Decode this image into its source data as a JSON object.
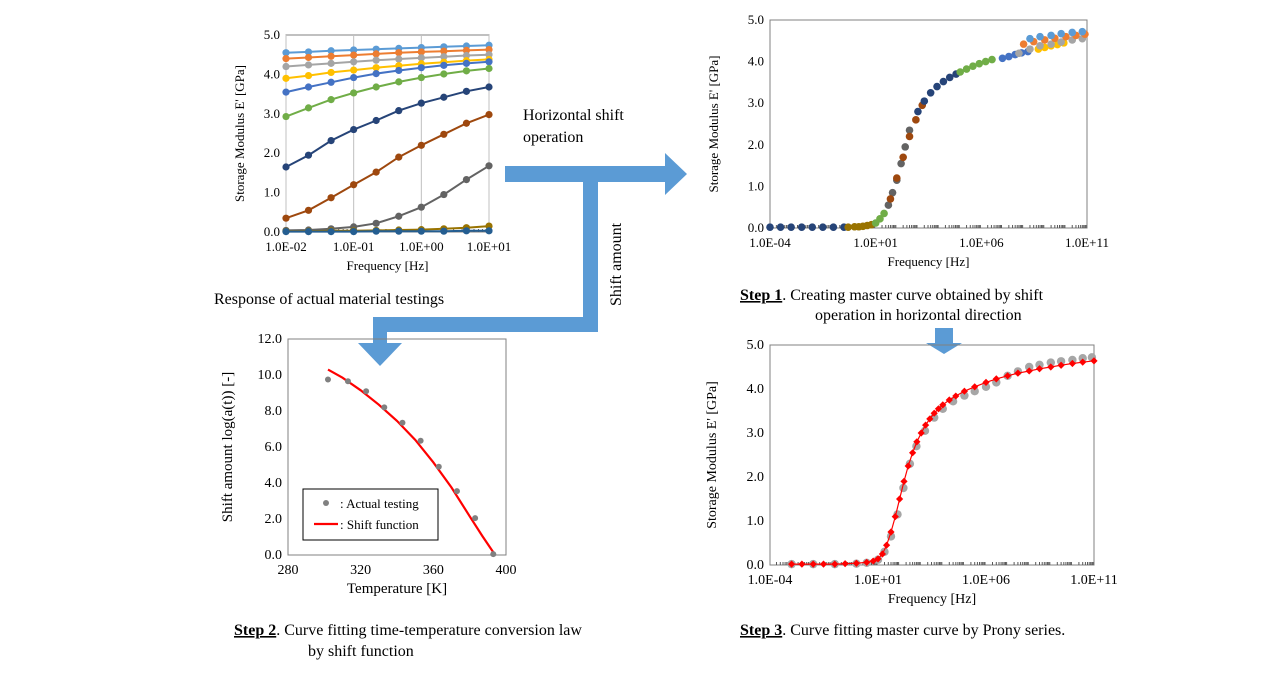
{
  "arrows": {
    "horizontal_shift_label": [
      "Horizontal shift",
      "operation"
    ],
    "shift_amount_label": "Shift amount"
  },
  "captions": {
    "response_label": "Response of actual material testings",
    "step1_prefix": "Step 1",
    "step1_line1": ". Creating master curve obtained by shift",
    "step1_line2": "operation in horizontal direction",
    "step2_prefix": "Step 2",
    "step2_line1": ". Curve  fitting time-temperature conversion law",
    "step2_line2": "by shift function",
    "step3_prefix": "Step 3",
    "step3_line1": ". Curve fitting master curve by Prony series."
  },
  "colors": {
    "arrow": "#5b9bd5",
    "fit_red": "#ff0000",
    "grey": "#a6a6a6",
    "point_grey": "#808080"
  },
  "chart_data": [
    {
      "id": "response",
      "type": "line",
      "xlabel": "Frequency [Hz]",
      "ylabel": "Storage Modulus E' [GPa]",
      "x_scale": "log",
      "xlim": [
        0.01,
        10
      ],
      "ylim": [
        0,
        5
      ],
      "xticks": [
        "1.0E-02",
        "1.0E-01",
        "1.0E+00",
        "1.0E+01"
      ],
      "yticks": [
        "0.0",
        "1.0",
        "2.0",
        "3.0",
        "4.0",
        "5.0"
      ],
      "grid": "vertical",
      "x": [
        0.01,
        0.0215,
        0.0464,
        0.1,
        0.215,
        0.464,
        1,
        2.15,
        4.64,
        10
      ],
      "series": [
        {
          "color": "#5b9bd5",
          "values": [
            4.55,
            4.57,
            4.6,
            4.62,
            4.64,
            4.66,
            4.68,
            4.7,
            4.72,
            4.74
          ]
        },
        {
          "color": "#ed7d31",
          "values": [
            4.4,
            4.43,
            4.46,
            4.49,
            4.52,
            4.55,
            4.57,
            4.59,
            4.61,
            4.63
          ]
        },
        {
          "color": "#a5a5a5",
          "values": [
            4.2,
            4.24,
            4.28,
            4.32,
            4.36,
            4.39,
            4.42,
            4.45,
            4.48,
            4.5
          ]
        },
        {
          "color": "#ffc000",
          "values": [
            3.9,
            3.97,
            4.05,
            4.11,
            4.17,
            4.22,
            4.27,
            4.31,
            4.35,
            4.38
          ]
        },
        {
          "color": "#4472c4",
          "values": [
            3.55,
            3.68,
            3.8,
            3.92,
            4.02,
            4.1,
            4.17,
            4.23,
            4.28,
            4.32
          ]
        },
        {
          "color": "#70ad47",
          "values": [
            2.93,
            3.15,
            3.36,
            3.53,
            3.68,
            3.81,
            3.92,
            4.01,
            4.09,
            4.15
          ]
        },
        {
          "color": "#264478",
          "values": [
            1.65,
            1.95,
            2.32,
            2.6,
            2.83,
            3.08,
            3.27,
            3.42,
            3.57,
            3.68
          ]
        },
        {
          "color": "#9e480e",
          "values": [
            0.35,
            0.55,
            0.87,
            1.2,
            1.52,
            1.9,
            2.2,
            2.48,
            2.76,
            2.98
          ]
        },
        {
          "color": "#636363",
          "values": [
            0.04,
            0.05,
            0.08,
            0.13,
            0.22,
            0.4,
            0.63,
            0.95,
            1.33,
            1.68
          ]
        },
        {
          "color": "#997300",
          "values": [
            0.02,
            0.02,
            0.03,
            0.03,
            0.04,
            0.05,
            0.06,
            0.08,
            0.11,
            0.15
          ]
        },
        {
          "color": "#255e91",
          "values": [
            0.01,
            0.01,
            0.01,
            0.01,
            0.02,
            0.02,
            0.02,
            0.02,
            0.03,
            0.03
          ]
        }
      ]
    },
    {
      "id": "master",
      "type": "scatter",
      "xlabel": "Frequency [Hz]",
      "ylabel": "Storage Modulus E' [GPa]",
      "x_scale": "log",
      "xlim": [
        0.0001,
        100000000000.0
      ],
      "ylim": [
        0,
        5
      ],
      "xticks": [
        "1.0E-04",
        "1.0E+01",
        "1.0E+06",
        "1.0E+11"
      ],
      "yticks": [
        "0.0",
        "1.0",
        "2.0",
        "3.0",
        "4.0",
        "5.0"
      ],
      "grid": "off",
      "groups": [
        {
          "color": "#264478",
          "x": [
            0.0001,
            0.000316,
            0.001,
            0.00316,
            0.01,
            0.0316,
            0.1,
            0.316
          ],
          "y": [
            0.02,
            0.02,
            0.02,
            0.02,
            0.02,
            0.02,
            0.02,
            0.02
          ]
        },
        {
          "color": "#997300",
          "x": [
            0.5,
            1.0,
            1.6,
            2.5,
            4,
            6.3
          ],
          "y": [
            0.02,
            0.03,
            0.03,
            0.04,
            0.06,
            0.08
          ]
        },
        {
          "color": "#70ad47",
          "x": [
            10,
            16,
            25
          ],
          "y": [
            0.12,
            0.22,
            0.35
          ]
        },
        {
          "color": "#636363",
          "x": [
            40,
            63,
            100,
            160,
            250,
            400
          ],
          "y": [
            0.55,
            0.85,
            1.15,
            1.55,
            1.95,
            2.35
          ]
        },
        {
          "color": "#9e480e",
          "x": [
            50,
            100,
            200,
            400,
            800,
            1600
          ],
          "y": [
            0.7,
            1.2,
            1.7,
            2.2,
            2.6,
            2.95
          ]
        },
        {
          "color": "#264478",
          "x": [
            1000,
            2000,
            4000,
            8000,
            16000,
            32000,
            64000
          ],
          "y": [
            2.8,
            3.05,
            3.25,
            3.4,
            3.52,
            3.62,
            3.7
          ]
        },
        {
          "color": "#70ad47",
          "x": [
            100000,
            200000,
            400000,
            800000,
            1600000,
            3200000
          ],
          "y": [
            3.75,
            3.82,
            3.89,
            3.95,
            4.0,
            4.05
          ]
        },
        {
          "color": "#4472c4",
          "x": [
            10000000,
            20000000,
            40000000,
            80000000,
            160000000
          ],
          "y": [
            4.08,
            4.12,
            4.17,
            4.21,
            4.24
          ]
        },
        {
          "color": "#ffc000",
          "x": [
            500000000,
            1000000000,
            2000000000,
            4000000000,
            8000000000
          ],
          "y": [
            4.3,
            4.34,
            4.38,
            4.41,
            4.45
          ]
        },
        {
          "color": "#a5a5a5",
          "x": [
            60000000,
            200000000,
            600000000,
            2000000000,
            6000000000,
            20000000000,
            60000000000
          ],
          "y": [
            4.2,
            4.3,
            4.38,
            4.42,
            4.47,
            4.52,
            4.55
          ]
        },
        {
          "color": "#ed7d31",
          "x": [
            100000000,
            300000000,
            1000000000,
            3000000000,
            10000000000,
            30000000000,
            80000000000
          ],
          "y": [
            4.42,
            4.48,
            4.52,
            4.56,
            4.6,
            4.63,
            4.66
          ]
        },
        {
          "color": "#5b9bd5",
          "x": [
            200000000,
            600000000,
            2000000000,
            6000000000,
            20000000000,
            60000000000
          ],
          "y": [
            4.55,
            4.6,
            4.63,
            4.67,
            4.7,
            4.72
          ]
        }
      ]
    },
    {
      "id": "shift",
      "type": "scatter",
      "xlabel": "Temperature [K]",
      "ylabel": "Shift amount log(a(t)) [-]",
      "xlim": [
        280,
        400
      ],
      "ylim": [
        0,
        12
      ],
      "xticks": [
        "280",
        "320",
        "360",
        "400"
      ],
      "yticks": [
        "0.0",
        "2.0",
        "4.0",
        "6.0",
        "8.0",
        "10.0",
        "12.0"
      ],
      "grid": "off",
      "points": {
        "name": ": Actual testing",
        "x": [
          302,
          313,
          323,
          333,
          343,
          353,
          363,
          373,
          383,
          393
        ],
        "y": [
          9.75,
          9.65,
          9.1,
          8.2,
          7.35,
          6.35,
          4.9,
          3.55,
          2.05,
          0.05
        ]
      },
      "fit": {
        "name": ": Shift function",
        "x": [
          302,
          310,
          320,
          330,
          340,
          350,
          360,
          370,
          380,
          387,
          393
        ],
        "y": [
          10.3,
          9.85,
          9.15,
          8.35,
          7.45,
          6.4,
          5.15,
          3.75,
          2.15,
          1.05,
          0.15
        ]
      },
      "legend": "bottom-left"
    },
    {
      "id": "prony",
      "type": "scatter",
      "xlabel": "Frequency [Hz]",
      "ylabel": "Storage Modulus E' [GPa]",
      "x_scale": "log",
      "xlim": [
        0.0001,
        100000000000.0
      ],
      "ylim": [
        0,
        5
      ],
      "xticks": [
        "1.0E-04",
        "1.0E+01",
        "1.0E+06",
        "1.0E+11"
      ],
      "yticks": [
        "0.0",
        "1.0",
        "2.0",
        "3.0",
        "4.0",
        "5.0"
      ],
      "grid": "off",
      "measured": {
        "color": "#a6a6a6",
        "x": [
          0.001,
          0.01,
          0.1,
          1,
          3,
          10,
          20,
          40,
          80,
          150,
          300,
          600,
          1500,
          4000,
          10000,
          30000,
          100000,
          300000,
          1000000,
          3000000,
          10000000,
          30000000,
          100000000,
          300000000,
          1000000000,
          3000000000,
          10000000000,
          30000000000,
          80000000000
        ],
        "y": [
          0.02,
          0.02,
          0.02,
          0.03,
          0.05,
          0.12,
          0.3,
          0.65,
          1.15,
          1.75,
          2.3,
          2.7,
          3.05,
          3.35,
          3.55,
          3.72,
          3.85,
          3.95,
          4.05,
          4.15,
          4.3,
          4.4,
          4.5,
          4.55,
          4.6,
          4.63,
          4.66,
          4.7,
          4.72
        ]
      },
      "fit": {
        "color": "#ff0000",
        "x": [
          0.001,
          0.003,
          0.01,
          0.03,
          0.1,
          0.3,
          1,
          3,
          6,
          10,
          16,
          25,
          40,
          63,
          100,
          160,
          250,
          400,
          630,
          1000,
          1600,
          2500,
          4000,
          6300,
          10000,
          20000,
          40000,
          100000,
          300000,
          1000000,
          3000000,
          10000000,
          30000000,
          100000000,
          300000000,
          1000000000,
          3000000000,
          10000000000,
          30000000000,
          100000000000
        ],
        "y": [
          0.02,
          0.02,
          0.02,
          0.02,
          0.02,
          0.03,
          0.04,
          0.06,
          0.09,
          0.14,
          0.25,
          0.45,
          0.75,
          1.1,
          1.5,
          1.9,
          2.25,
          2.55,
          2.8,
          3.0,
          3.18,
          3.32,
          3.45,
          3.55,
          3.64,
          3.75,
          3.84,
          3.95,
          4.05,
          4.15,
          4.23,
          4.3,
          4.36,
          4.41,
          4.46,
          4.5,
          4.54,
          4.58,
          4.61,
          4.64
        ]
      }
    }
  ]
}
